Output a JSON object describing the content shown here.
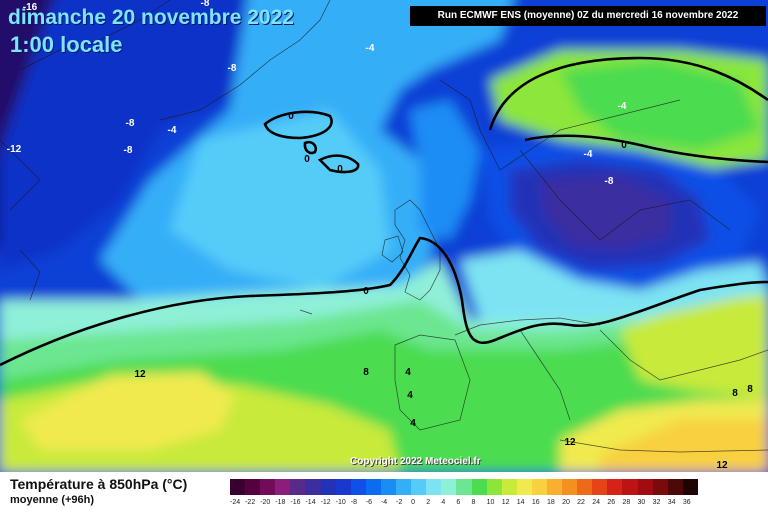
{
  "header": {
    "date": "dimanche 20 novembre 2022",
    "time": "1:00 locale",
    "run": "Run ECMWF ENS (moyenne) 0Z du mercredi 16 novembre 2022"
  },
  "map": {
    "copyright": "Copyright 2022 Meteociel.fr",
    "contour_labels": [
      {
        "text": "-16",
        "zone": "top-left"
      },
      {
        "text": "-8",
        "zone": "top-left"
      },
      {
        "text": "-8",
        "zone": "greenland"
      },
      {
        "text": "-4",
        "zone": "north-atlantic"
      },
      {
        "text": "-8",
        "zone": "greenland"
      },
      {
        "text": "-4",
        "zone": "greenland"
      },
      {
        "text": "-8",
        "zone": "greenland"
      },
      {
        "text": "-12",
        "zone": "canada"
      },
      {
        "text": "0",
        "zone": "iceland"
      },
      {
        "text": "0",
        "zone": "iceland"
      },
      {
        "text": "0",
        "zone": "iceland"
      },
      {
        "text": "-4",
        "zone": "scandinavia"
      },
      {
        "text": "-4",
        "zone": "scandinavia"
      },
      {
        "text": "0",
        "zone": "scandinavia"
      },
      {
        "text": "-8",
        "zone": "central-europe"
      },
      {
        "text": "0",
        "zone": "atlantic"
      },
      {
        "text": "12",
        "zone": "atlantic"
      },
      {
        "text": "8",
        "zone": "atlantic"
      },
      {
        "text": "4",
        "zone": "iberia"
      },
      {
        "text": "4",
        "zone": "iberia"
      },
      {
        "text": "4",
        "zone": "iberia"
      },
      {
        "text": "8",
        "zone": "east-mediterranean"
      },
      {
        "text": "8",
        "zone": "east-mediterranean"
      },
      {
        "text": "12",
        "zone": "mediterranean"
      },
      {
        "text": "12",
        "zone": "mediterranean"
      }
    ]
  },
  "footer": {
    "title": "Température à 850hPa (°C)",
    "subtitle": "moyenne   (+96h)"
  },
  "legend": {
    "ticks": [
      "-24",
      "-22",
      "-20",
      "-18",
      "-16",
      "-14",
      "-12",
      "-10",
      "-8",
      "-6",
      "-4",
      "-2",
      "0",
      "2",
      "4",
      "6",
      "8",
      "10",
      "12",
      "14",
      "16",
      "18",
      "20",
      "22",
      "24",
      "26",
      "28",
      "30",
      "32",
      "34",
      "36"
    ],
    "colors": [
      "#3a0030",
      "#55003f",
      "#720c58",
      "#8a1e78",
      "#5a2a8a",
      "#3a2ea0",
      "#2233b8",
      "#1838d0",
      "#1050e6",
      "#0a6cf0",
      "#1a8df5",
      "#35aef8",
      "#55ccf8",
      "#7de3f3",
      "#8ff0d8",
      "#6ce690",
      "#4cdc50",
      "#8ce63a",
      "#c8ea3a",
      "#f0ea50",
      "#f8d040",
      "#f8b030",
      "#f49020",
      "#ee6a18",
      "#e44418",
      "#d42418",
      "#bc1414",
      "#a00c10",
      "#7a0a0c",
      "#4e0808",
      "#200404"
    ]
  },
  "colors": {
    "title_text": "#7fe3ff",
    "contour": "#000000"
  }
}
